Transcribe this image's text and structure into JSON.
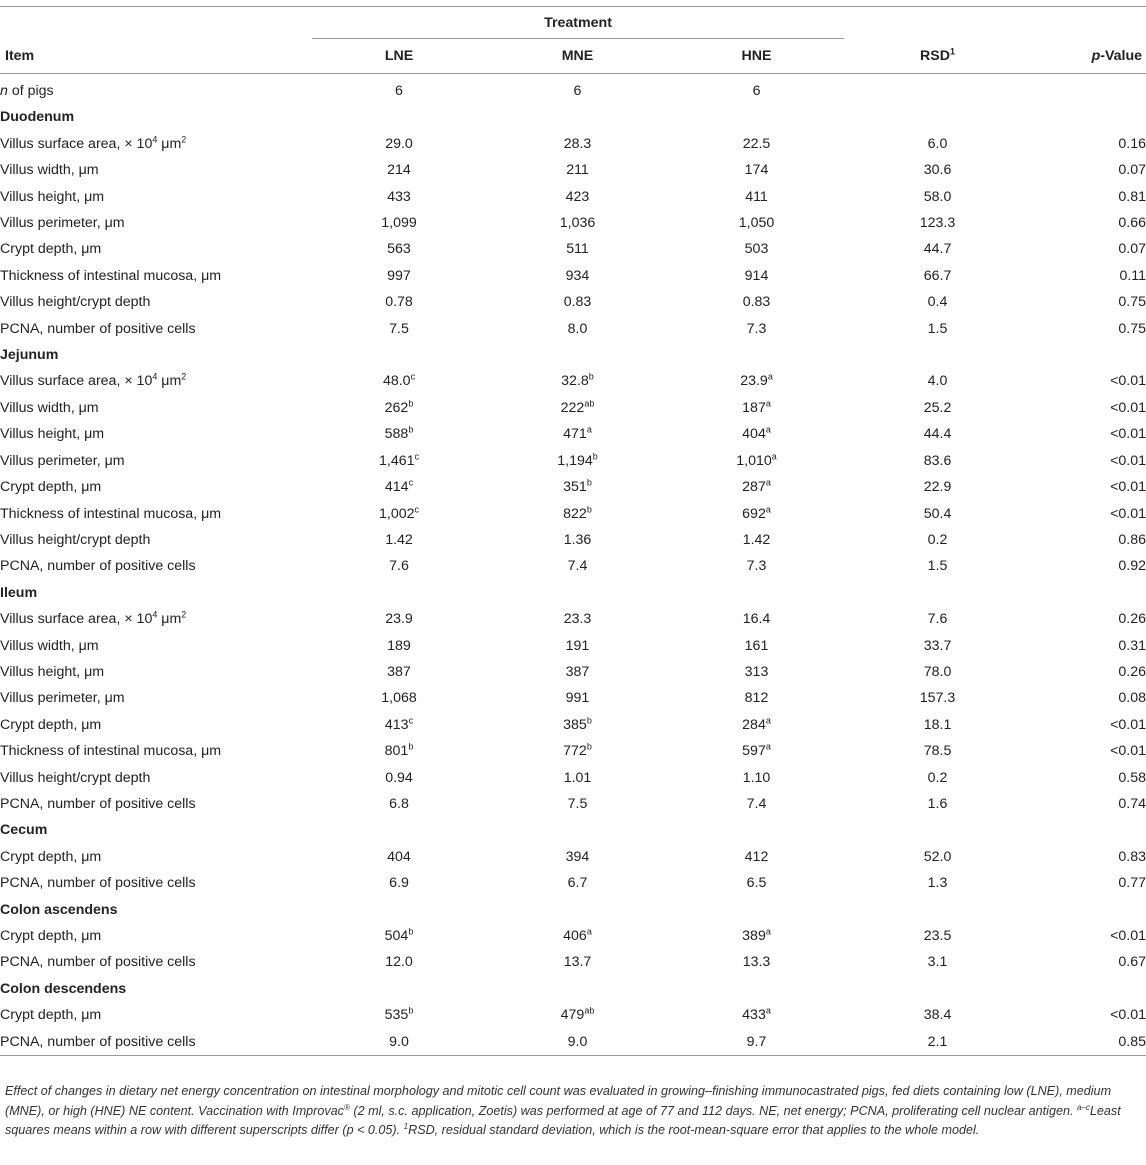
{
  "table": {
    "header": {
      "treatment": "Treatment",
      "item": "Item",
      "lne": "LNE",
      "mne": "MNE",
      "hne": "HNE",
      "rsd": "RSD",
      "rsd_sup": "1",
      "pvalue_italic": "p",
      "pvalue_rest": "-Value"
    },
    "rows": [
      {
        "type": "data",
        "item_italic": "n",
        "item": " of pigs",
        "lne": "6",
        "mne": "6",
        "hne": "6",
        "rsd": "",
        "p": ""
      },
      {
        "type": "section",
        "label": "Duodenum"
      },
      {
        "type": "data",
        "item": "Villus surface area, × 10",
        "item_sup": "4",
        "item_after": " μm",
        "item_sup2": "2",
        "lne": "29.0",
        "mne": "28.3",
        "hne": "22.5",
        "rsd": "6.0",
        "p": "0.16"
      },
      {
        "type": "data",
        "item": "Villus width, μm",
        "lne": "214",
        "mne": "211",
        "hne": "174",
        "rsd": "30.6",
        "p": "0.07"
      },
      {
        "type": "data",
        "item": "Villus height, μm",
        "lne": "433",
        "mne": "423",
        "hne": "411",
        "rsd": "58.0",
        "p": "0.81"
      },
      {
        "type": "data",
        "item": "Villus perimeter, μm",
        "lne": "1,099",
        "mne": "1,036",
        "hne": "1,050",
        "rsd": "123.3",
        "p": "0.66"
      },
      {
        "type": "data",
        "item": "Crypt depth, μm",
        "lne": "563",
        "mne": "511",
        "hne": "503",
        "rsd": "44.7",
        "p": "0.07"
      },
      {
        "type": "data",
        "item": "Thickness of intestinal mucosa, μm",
        "lne": "997",
        "mne": "934",
        "hne": "914",
        "rsd": "66.7",
        "p": "0.11"
      },
      {
        "type": "data",
        "item": "Villus height/crypt depth",
        "lne": "0.78",
        "mne": "0.83",
        "hne": "0.83",
        "rsd": "0.4",
        "p": "0.75"
      },
      {
        "type": "data",
        "item": "PCNA, number of positive cells",
        "lne": "7.5",
        "mne": "8.0",
        "hne": "7.3",
        "rsd": "1.5",
        "p": "0.75"
      },
      {
        "type": "section",
        "label": "Jejunum"
      },
      {
        "type": "data",
        "item": "Villus surface area, × 10",
        "item_sup": "4",
        "item_after": " μm",
        "item_sup2": "2",
        "lne": "48.0",
        "lne_sup": "c",
        "mne": "32.8",
        "mne_sup": "b",
        "hne": "23.9",
        "hne_sup": "a",
        "rsd": "4.0",
        "p": "<0.01"
      },
      {
        "type": "data",
        "item": "Villus width, μm",
        "lne": "262",
        "lne_sup": "b",
        "mne": "222",
        "mne_sup": "ab",
        "hne": "187",
        "hne_sup": "a",
        "rsd": "25.2",
        "p": "<0.01"
      },
      {
        "type": "data",
        "item": "Villus height, μm",
        "lne": "588",
        "lne_sup": "b",
        "mne": "471",
        "mne_sup": "a",
        "hne": "404",
        "hne_sup": "a",
        "rsd": "44.4",
        "p": "<0.01"
      },
      {
        "type": "data",
        "item": "Villus perimeter, μm",
        "lne": "1,461",
        "lne_sup": "c",
        "mne": "1,194",
        "mne_sup": "b",
        "hne": "1,010",
        "hne_sup": "a",
        "rsd": "83.6",
        "p": "<0.01"
      },
      {
        "type": "data",
        "item": "Crypt depth, μm",
        "lne": "414",
        "lne_sup": "c",
        "mne": "351",
        "mne_sup": "b",
        "hne": "287",
        "hne_sup": "a",
        "rsd": "22.9",
        "p": "<0.01"
      },
      {
        "type": "data",
        "item": "Thickness of intestinal mucosa, μm",
        "lne": "1,002",
        "lne_sup": "c",
        "mne": "822",
        "mne_sup": "b",
        "hne": "692",
        "hne_sup": "a",
        "rsd": "50.4",
        "p": "<0.01"
      },
      {
        "type": "data",
        "item": "Villus height/crypt depth",
        "lne": "1.42",
        "mne": "1.36",
        "hne": "1.42",
        "rsd": "0.2",
        "p": "0.86"
      },
      {
        "type": "data",
        "item": "PCNA, number of positive cells",
        "lne": "7.6",
        "mne": "7.4",
        "hne": "7.3",
        "rsd": "1.5",
        "p": "0.92"
      },
      {
        "type": "section",
        "label": "Ileum"
      },
      {
        "type": "data",
        "item": "Villus surface area, × 10",
        "item_sup": "4",
        "item_after": " μm",
        "item_sup2": "2",
        "lne": "23.9",
        "mne": "23.3",
        "hne": "16.4",
        "rsd": "7.6",
        "p": "0.26"
      },
      {
        "type": "data",
        "item": "Villus width, μm",
        "lne": "189",
        "mne": "191",
        "hne": "161",
        "rsd": "33.7",
        "p": "0.31"
      },
      {
        "type": "data",
        "item": "Villus height, μm",
        "lne": "387",
        "mne": "387",
        "hne": "313",
        "rsd": "78.0",
        "p": "0.26"
      },
      {
        "type": "data",
        "item": "Villus perimeter, μm",
        "lne": "1,068",
        "mne": "991",
        "hne": "812",
        "rsd": "157.3",
        "p": "0.08"
      },
      {
        "type": "data",
        "item": "Crypt depth, μm",
        "lne": "413",
        "lne_sup": "c",
        "mne": "385",
        "mne_sup": "b",
        "hne": "284",
        "hne_sup": "a",
        "rsd": "18.1",
        "p": "<0.01"
      },
      {
        "type": "data",
        "item": "Thickness of intestinal mucosa, μm",
        "lne": "801",
        "lne_sup": "b",
        "mne": "772",
        "mne_sup": "b",
        "hne": "597",
        "hne_sup": "a",
        "rsd": "78.5",
        "p": "<0.01"
      },
      {
        "type": "data",
        "item": "Villus height/crypt depth",
        "lne": "0.94",
        "mne": "1.01",
        "hne": "1.10",
        "rsd": "0.2",
        "p": "0.58"
      },
      {
        "type": "data",
        "item": "PCNA, number of positive cells",
        "lne": "6.8",
        "mne": "7.5",
        "hne": "7.4",
        "rsd": "1.6",
        "p": "0.74"
      },
      {
        "type": "section",
        "label": "Cecum"
      },
      {
        "type": "data",
        "item": "Crypt depth, μm",
        "lne": "404",
        "mne": "394",
        "hne": "412",
        "rsd": "52.0",
        "p": "0.83"
      },
      {
        "type": "data",
        "item": "PCNA, number of positive cells",
        "lne": "6.9",
        "mne": "6.7",
        "hne": "6.5",
        "rsd": "1.3",
        "p": "0.77"
      },
      {
        "type": "section",
        "label": "Colon ascendens"
      },
      {
        "type": "data",
        "item": "Crypt depth, μm",
        "lne": "504",
        "lne_sup": "b",
        "mne": "406",
        "mne_sup": "a",
        "hne": "389",
        "hne_sup": "a",
        "rsd": "23.5",
        "p": "<0.01"
      },
      {
        "type": "data",
        "item": "PCNA, number of positive cells",
        "lne": "12.0",
        "mne": "13.7",
        "hne": "13.3",
        "rsd": "3.1",
        "p": "0.67"
      },
      {
        "type": "section",
        "label": "Colon descendens"
      },
      {
        "type": "data",
        "item": "Crypt depth, μm",
        "lne": "535",
        "lne_sup": "b",
        "mne": "479",
        "mne_sup": "ab",
        "hne": "433",
        "hne_sup": "a",
        "rsd": "38.4",
        "p": "<0.01"
      },
      {
        "type": "data",
        "item": "PCNA, number of positive cells",
        "lne": "9.0",
        "mne": "9.0",
        "hne": "9.7",
        "rsd": "2.1",
        "p": "0.85"
      }
    ]
  },
  "footnote": {
    "part1": "Effect of changes in dietary net energy concentration on intestinal morphology and mitotic cell count was evaluated in growing–finishing immunocastrated pigs, fed diets containing low (LNE), medium (MNE), or high (HNE) NE content. Vaccination with Improvac",
    "reg": "®",
    "part2": " (2 ml, s.c. application, Zoetis) was performed at age of 77 and 112 days. NE, net energy; PCNA, proliferating cell nuclear antigen. ",
    "sup_ac": "a–c",
    "part3": "Least squares means within a row with different superscripts differ (p < 0.05). ",
    "sup_1": "1",
    "part4": "RSD, residual standard deviation, which is the root-mean-square error that applies to the whole model."
  }
}
